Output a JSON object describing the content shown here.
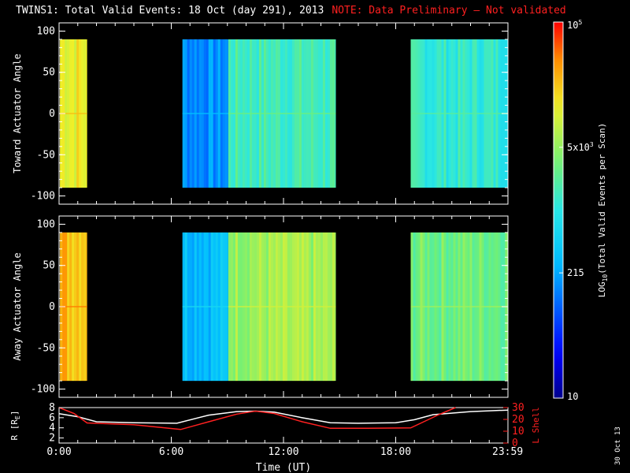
{
  "title": "TWINS1: Total Valid Events: 18 Oct (day 291), 2013",
  "note": "NOTE: Data Preliminary — Not validated",
  "stamp": "30 Oct 13",
  "colors": {
    "background": "#000000",
    "note": "#ff2020",
    "r_line": "#ffffff",
    "lshell_line": "#ff2020"
  },
  "chart_data": [
    {
      "type": "heatmap",
      "ylabel": "Toward Actuator Angle",
      "ylim": [
        -110,
        110
      ],
      "yticks": [
        100,
        50,
        0,
        -50,
        -100
      ],
      "angle_range": [
        -90,
        90
      ],
      "time_range_hours": [
        0,
        24
      ],
      "segments": [
        {
          "start": 0.05,
          "end": 1.5,
          "log_level": 0.78
        },
        {
          "start": 6.6,
          "end": 9.05,
          "log_level": 0.3
        },
        {
          "start": 9.05,
          "end": 14.8,
          "log_level": 0.55
        },
        {
          "start": 18.8,
          "end": 24.0,
          "log_level": 0.52
        }
      ]
    },
    {
      "type": "heatmap",
      "ylabel": "Away Actuator Angle",
      "ylim": [
        -110,
        110
      ],
      "yticks": [
        100,
        50,
        0,
        -50,
        -100
      ],
      "angle_range": [
        -90,
        90
      ],
      "time_range_hours": [
        0,
        24
      ],
      "segments": [
        {
          "start": 0.05,
          "end": 1.5,
          "log_level": 0.85
        },
        {
          "start": 6.6,
          "end": 9.05,
          "log_level": 0.38
        },
        {
          "start": 9.05,
          "end": 14.8,
          "log_level": 0.68
        },
        {
          "start": 18.8,
          "end": 24.0,
          "log_level": 0.62
        }
      ]
    },
    {
      "type": "line",
      "ylabel_left": "R [R",
      "ylabel_left_sub": "E",
      "ylabel_left_end": "]",
      "ylabel_right": "L Shell",
      "xlabel": "Time (UT)",
      "xticks": [
        "0:00",
        "6:00",
        "12:00",
        "18:00",
        "23:59"
      ],
      "xtick_hours": [
        0,
        6,
        12,
        18,
        23.983
      ],
      "ylim_left": [
        1,
        8
      ],
      "yticks_left": [
        8,
        6,
        4,
        2
      ],
      "ylim_right": [
        0,
        30
      ],
      "yticks_right": [
        30,
        20,
        10,
        0
      ],
      "series": [
        {
          "axis": "left",
          "color": "#ffffff",
          "x": [
            0,
            1,
            2,
            4,
            6.3,
            8,
            9.5,
            10.5,
            11.5,
            13,
            14.5,
            16,
            18,
            19,
            20,
            22,
            24
          ],
          "y": [
            6.8,
            6.2,
            5.2,
            5.0,
            4.9,
            6.5,
            7.2,
            7.3,
            7.1,
            6.0,
            5.0,
            4.9,
            5.0,
            5.6,
            6.6,
            7.2,
            7.5
          ]
        },
        {
          "axis": "right",
          "color": "#ff2020",
          "x": [
            0,
            0.8,
            1.5,
            4,
            6.5,
            8,
            9.5,
            10.5,
            11.5,
            13,
            14.5,
            16.5,
            18.8,
            19.5,
            20.3,
            21.2
          ],
          "y": [
            30,
            25,
            17,
            15.5,
            11.5,
            18,
            24.5,
            27,
            25,
            18,
            12.5,
            12.5,
            12.8,
            18,
            24,
            30
          ]
        }
      ]
    }
  ],
  "colorbar": {
    "label": "LOG",
    "label_sub": "10",
    "label_rest": "(Total Valid Events per Scan)",
    "ticks": [
      {
        "text": "10",
        "frac": 0.0
      },
      {
        "text": "215",
        "frac": 0.333
      },
      {
        "text": "5x10",
        "sup": "3",
        "frac": 0.667
      },
      {
        "text": "10",
        "sup": "5",
        "frac": 1.0
      }
    ]
  }
}
